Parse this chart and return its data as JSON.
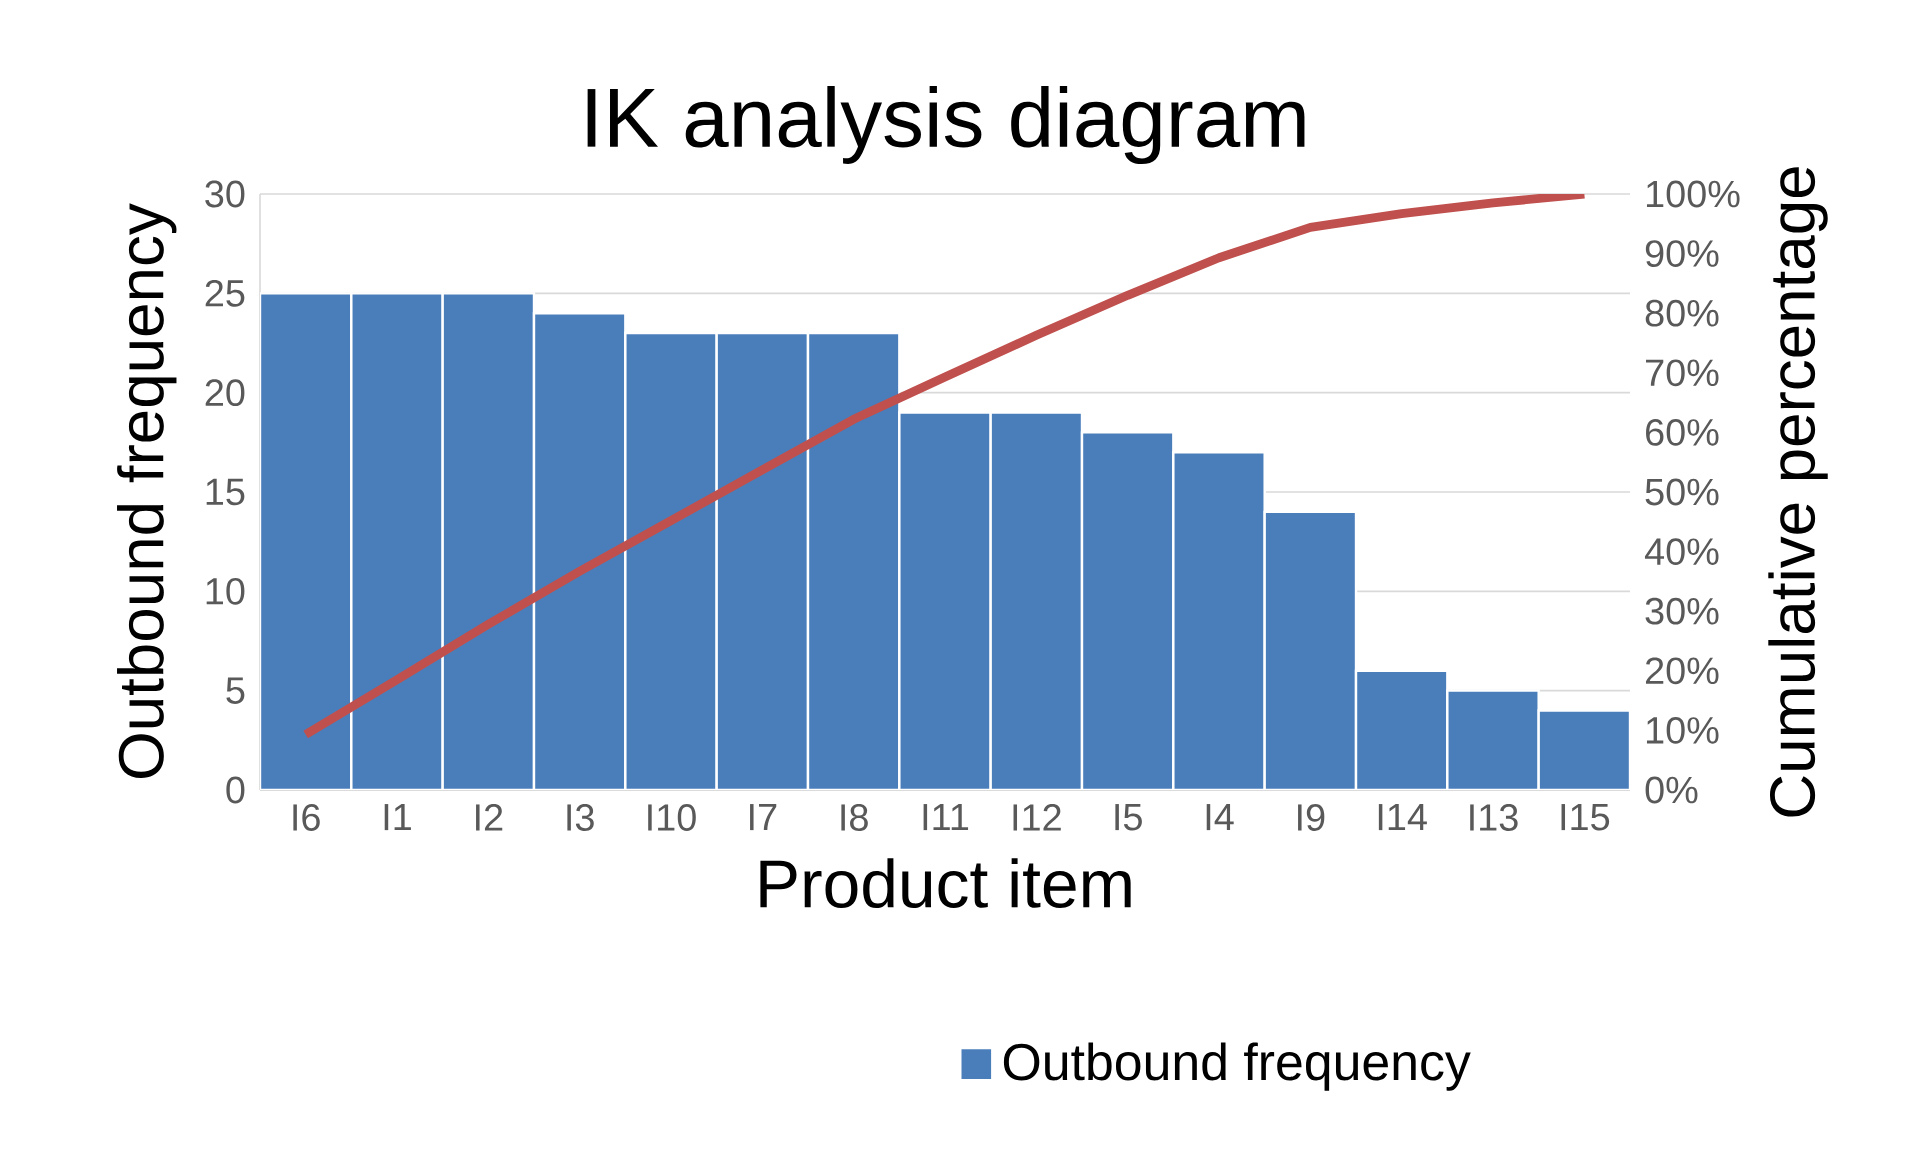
{
  "chart_data": {
    "type": "bar",
    "title": "IK analysis diagram",
    "xlabel": "Product item",
    "ylabel": "Outbound frequency",
    "y2label": "Cumulative percentage",
    "categories": [
      "I6",
      "I1",
      "I2",
      "I3",
      "I10",
      "I7",
      "I8",
      "I11",
      "I12",
      "I5",
      "I4",
      "I9",
      "I14",
      "I13",
      "I15"
    ],
    "series": [
      {
        "name": "Outbound frequency",
        "color": "#4a7ebb",
        "values": [
          25,
          25,
          25,
          24,
          23,
          23,
          23,
          19,
          19,
          18,
          17,
          14,
          6,
          5,
          4
        ]
      },
      {
        "type": "line",
        "axis": "y2",
        "color": "#c0504d",
        "values": [
          9.3,
          18.5,
          27.8,
          36.7,
          45.2,
          53.7,
          62.2,
          69.3,
          76.3,
          83.0,
          89.3,
          94.4,
          96.7,
          98.5,
          100
        ]
      }
    ],
    "ylim": [
      0,
      30
    ],
    "yticks": [
      0,
      5,
      10,
      15,
      20,
      25,
      30
    ],
    "y2lim": [
      0,
      100
    ],
    "y2ticks": [
      {
        "value": 0,
        "label": "0%"
      },
      {
        "value": 10,
        "label": "10%"
      },
      {
        "value": 20,
        "label": "20%"
      },
      {
        "value": 30,
        "label": "30%"
      },
      {
        "value": 40,
        "label": "40%"
      },
      {
        "value": 50,
        "label": "50%"
      },
      {
        "value": 60,
        "label": "60%"
      },
      {
        "value": 70,
        "label": "70%"
      },
      {
        "value": 80,
        "label": "80%"
      },
      {
        "value": 90,
        "label": "90%"
      },
      {
        "value": 100,
        "label": "100%"
      }
    ],
    "grid": "y",
    "legend": "bottom"
  }
}
